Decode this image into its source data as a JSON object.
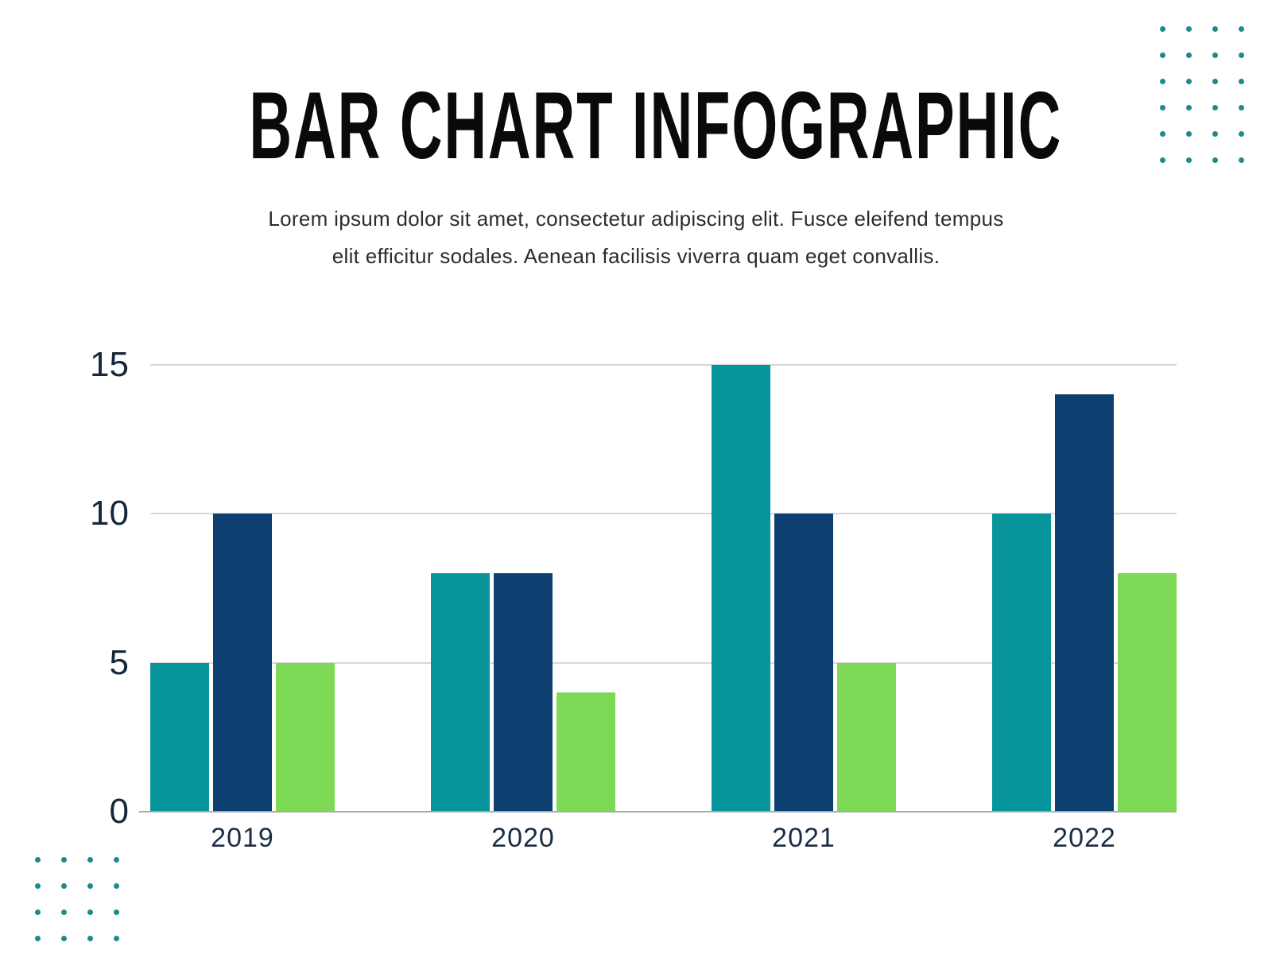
{
  "title": "BAR CHART INFOGRAPHIC",
  "subtitle_lines": [
    "Lorem ipsum dolor sit amet, consectetur adipiscing elit. Fusce eleifend tempus",
    "elit efficitur sodales. Aenean facilisis viverra quam eget convallis."
  ],
  "chart_data": {
    "type": "bar",
    "categories": [
      "2019",
      "2020",
      "2021",
      "2022"
    ],
    "series": [
      {
        "name": "teal",
        "color": "#07949A",
        "values": [
          5,
          8,
          15,
          10
        ]
      },
      {
        "name": "navy",
        "color": "#0D4070",
        "values": [
          10,
          8,
          10,
          14
        ]
      },
      {
        "name": "green",
        "color": "#7ED957",
        "values": [
          5,
          4,
          5,
          8
        ]
      }
    ],
    "title": "",
    "xlabel": "",
    "ylabel": "",
    "ylim": [
      0,
      15
    ],
    "yticks": [
      0,
      5,
      10,
      15
    ],
    "grid": "horizontal-on",
    "legend": "none"
  },
  "colors": {
    "background": "#ffffff",
    "title_text": "#0a0a0a",
    "subtitle_text": "#2c2c2c",
    "axis_label_text": "#16273b",
    "category_label_text": "#1b2d44",
    "gridline": "#d7d7d7",
    "baseline": "#a9a9a9",
    "decor_dot": "#1E8A8C"
  },
  "decor": {
    "dot_icon": "dot-grid",
    "top_right": {
      "rows": 6,
      "cols": 4
    },
    "bottom_left": {
      "rows": 4,
      "cols": 4
    }
  }
}
